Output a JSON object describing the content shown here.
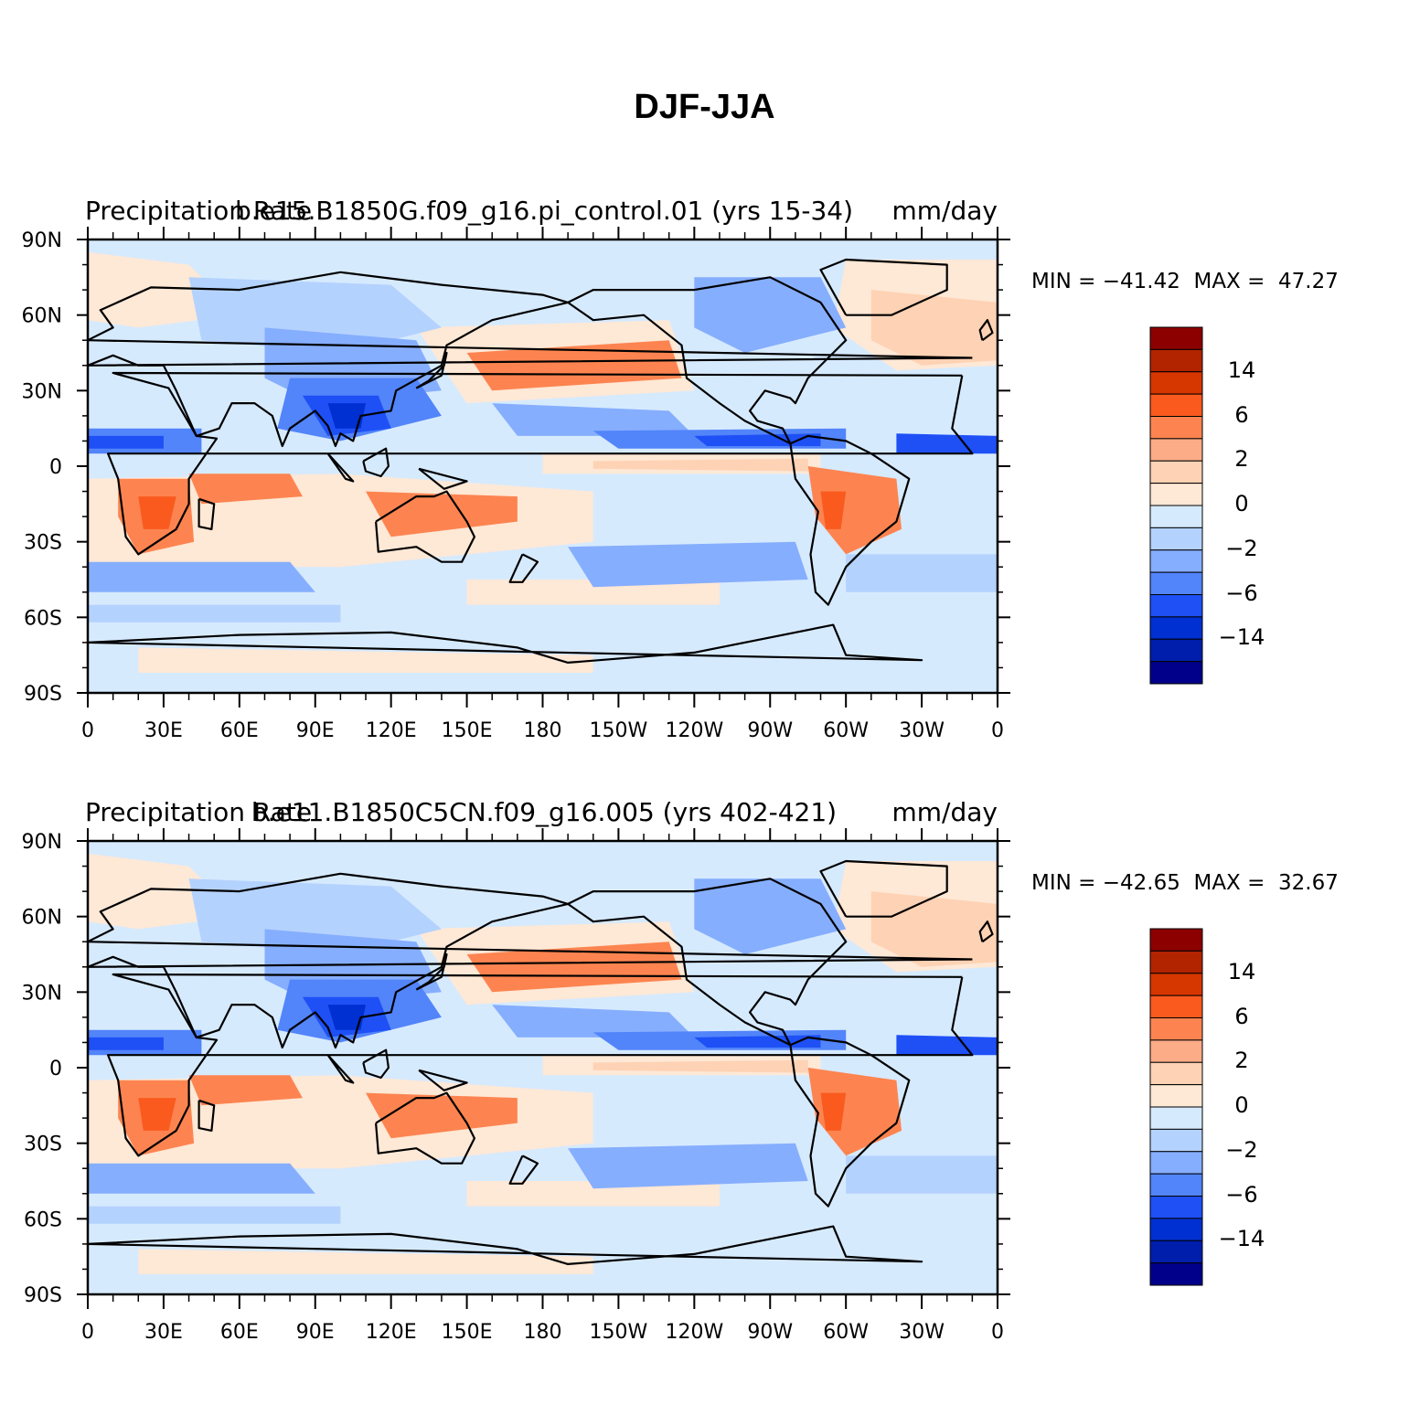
{
  "title": "DJF-JJA",
  "panels": [
    {
      "left_label": "Precipitation Rate",
      "center_label": "b.e15.B1850G.f09_g16.pi_control.01 (yrs 15-34)",
      "right_label": "mm/day",
      "min_text": "MIN = −41.42",
      "max_text": "MAX =  47.27"
    },
    {
      "left_label": "Precipitation Rate",
      "center_label": "b.e11.B1850C5CN.f09_g16.005 (yrs 402-421)",
      "right_label": "mm/day",
      "min_text": "MIN = −42.65",
      "max_text": "MAX =  32.67"
    }
  ],
  "lat_ticks": [
    "90N",
    "60N",
    "30N",
    "0",
    "30S",
    "60S",
    "90S"
  ],
  "lon_ticks": [
    "0",
    "30E",
    "60E",
    "90E",
    "120E",
    "150E",
    "180",
    "150W",
    "120W",
    "90W",
    "60W",
    "30W",
    "0"
  ],
  "colorbar": {
    "labels": [
      "14",
      "6",
      "2",
      "0",
      "−2",
      "−6",
      "−14"
    ],
    "colors": [
      "#8c0000",
      "#b22400",
      "#d63600",
      "#fa5a1e",
      "#fd8450",
      "#fdac88",
      "#fed2b4",
      "#fee8d6",
      "#d6eafe",
      "#b4d2fe",
      "#86aefe",
      "#5284fa",
      "#1e50f6",
      "#0030d2",
      "#001eac",
      "#00008a"
    ]
  },
  "map_colors": {
    "ocean_bg": "#d6eafe",
    "pos_light": "#fee8d6",
    "pos_mid": "#fed2b4",
    "pos_strong": "#fd8450",
    "pos_max": "#fa5a1e",
    "neg_light": "#b4d2fe",
    "neg_mid": "#86aefe",
    "neg_strong": "#5284fa",
    "neg_max": "#1e50f6",
    "neg_deep": "#0030d2"
  }
}
